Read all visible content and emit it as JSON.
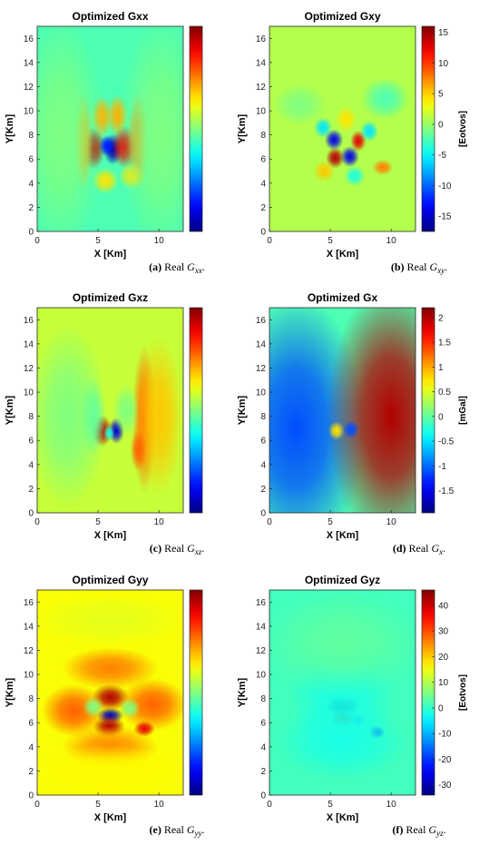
{
  "chart_data": [
    {
      "type": "heatmap",
      "title": "Optimized Gxx",
      "xlabel": "X [Km]",
      "ylabel": "Y[Km]",
      "xlim": [
        0,
        12
      ],
      "ylim": [
        0,
        17
      ],
      "x_ticks": [
        "0",
        "5",
        "10"
      ],
      "y_ticks": [
        "0",
        "2",
        "4",
        "6",
        "8",
        "10",
        "12",
        "14",
        "16"
      ],
      "colorbar_ticks": [],
      "colorbar_label": "",
      "caption": {
        "tag": "(a)",
        "text": " Real ",
        "sym": "G",
        "sub": "xx",
        "end": "."
      },
      "background": 0.45,
      "blobs": [
        {
          "x": 4.6,
          "y": 6.9,
          "sx": 0.45,
          "sy": 0.8,
          "v": 0.95
        },
        {
          "x": 6.2,
          "y": 6.8,
          "sx": 0.35,
          "sy": 0.6,
          "v": 0.05
        },
        {
          "x": 7.2,
          "y": 7.0,
          "sx": 0.5,
          "sy": 0.8,
          "v": 0.9
        },
        {
          "x": 5.7,
          "y": 7.1,
          "sx": 0.3,
          "sy": 0.4,
          "v": 0.15
        },
        {
          "x": 3.8,
          "y": 7.5,
          "sx": 0.35,
          "sy": 1.8,
          "v": 0.72
        },
        {
          "x": 8.3,
          "y": 7.5,
          "sx": 0.4,
          "sy": 1.8,
          "v": 0.75
        },
        {
          "x": 5.3,
          "y": 9.5,
          "sx": 0.4,
          "sy": 0.8,
          "v": 0.7
        },
        {
          "x": 6.6,
          "y": 9.6,
          "sx": 0.4,
          "sy": 0.8,
          "v": 0.7
        },
        {
          "x": 5.6,
          "y": 4.2,
          "sx": 0.5,
          "sy": 0.5,
          "v": 0.65
        },
        {
          "x": 7.8,
          "y": 4.6,
          "sx": 0.5,
          "sy": 0.5,
          "v": 0.65
        },
        {
          "x": 2.0,
          "y": 8.0,
          "sx": 1.6,
          "sy": 4.5,
          "v": 0.5
        },
        {
          "x": 10.2,
          "y": 8.0,
          "sx": 1.6,
          "sy": 4.5,
          "v": 0.5
        }
      ]
    },
    {
      "type": "heatmap",
      "title": "Optimized Gxy",
      "xlabel": "X [Km]",
      "ylabel": "Y[Km]",
      "xlim": [
        0,
        12
      ],
      "ylim": [
        0,
        17
      ],
      "x_ticks": [
        "0",
        "5",
        "10"
      ],
      "y_ticks": [
        "0",
        "2",
        "4",
        "6",
        "8",
        "10",
        "12",
        "14",
        "16"
      ],
      "colorbar_ticks": [
        "15",
        "10",
        "5",
        "0",
        "-5",
        "-10",
        "-15"
      ],
      "colorbar_label": "[Eotvos]",
      "caption": {
        "tag": "(b)",
        "text": " Real ",
        "sym": "G",
        "sub": "xy",
        "end": "."
      },
      "background": 0.55,
      "blobs": [
        {
          "x": 5.3,
          "y": 7.6,
          "sx": 0.35,
          "sy": 0.4,
          "v": 0.1
        },
        {
          "x": 5.4,
          "y": 6.1,
          "sx": 0.35,
          "sy": 0.4,
          "v": 0.95
        },
        {
          "x": 6.6,
          "y": 6.2,
          "sx": 0.35,
          "sy": 0.4,
          "v": 0.1
        },
        {
          "x": 7.3,
          "y": 7.5,
          "sx": 0.3,
          "sy": 0.4,
          "v": 0.9
        },
        {
          "x": 4.4,
          "y": 8.6,
          "sx": 0.35,
          "sy": 0.4,
          "v": 0.35
        },
        {
          "x": 8.2,
          "y": 8.3,
          "sx": 0.35,
          "sy": 0.4,
          "v": 0.35
        },
        {
          "x": 9.3,
          "y": 5.3,
          "sx": 0.4,
          "sy": 0.3,
          "v": 0.75
        },
        {
          "x": 4.5,
          "y": 5.0,
          "sx": 0.4,
          "sy": 0.4,
          "v": 0.68
        },
        {
          "x": 6.3,
          "y": 9.3,
          "sx": 0.4,
          "sy": 0.5,
          "v": 0.65
        },
        {
          "x": 7.0,
          "y": 4.6,
          "sx": 0.4,
          "sy": 0.4,
          "v": 0.4
        },
        {
          "x": 9.5,
          "y": 11.0,
          "sx": 0.9,
          "sy": 0.8,
          "v": 0.45
        },
        {
          "x": 2.5,
          "y": 10.5,
          "sx": 1.0,
          "sy": 0.8,
          "v": 0.5
        }
      ]
    },
    {
      "type": "heatmap",
      "title": "Optimized Gxz",
      "xlabel": "X [Km]",
      "ylabel": "Y[Km]",
      "xlim": [
        0,
        12
      ],
      "ylim": [
        0,
        17
      ],
      "x_ticks": [
        "0",
        "5",
        "10"
      ],
      "y_ticks": [
        "0",
        "2",
        "4",
        "6",
        "8",
        "10",
        "12",
        "14",
        "16"
      ],
      "colorbar_ticks": [],
      "colorbar_label": "",
      "caption": {
        "tag": "(c)",
        "text": " Real ",
        "sym": "G",
        "sub": "xz",
        "end": "."
      },
      "background": 0.57,
      "blobs": [
        {
          "x": 5.3,
          "y": 6.8,
          "sx": 0.4,
          "sy": 0.6,
          "v": 0.95
        },
        {
          "x": 6.5,
          "y": 6.8,
          "sx": 0.3,
          "sy": 0.5,
          "v": 0.08
        },
        {
          "x": 5.9,
          "y": 6.6,
          "sx": 0.2,
          "sy": 0.3,
          "v": 0.4
        },
        {
          "x": 8.8,
          "y": 7.8,
          "sx": 0.45,
          "sy": 2.8,
          "v": 0.78
        },
        {
          "x": 10.0,
          "y": 8.0,
          "sx": 0.9,
          "sy": 3.0,
          "v": 0.68
        },
        {
          "x": 8.3,
          "y": 5.2,
          "sx": 0.3,
          "sy": 0.8,
          "v": 0.78
        },
        {
          "x": 4.5,
          "y": 8.0,
          "sx": 0.5,
          "sy": 1.5,
          "v": 0.45
        },
        {
          "x": 2.5,
          "y": 8.0,
          "sx": 1.5,
          "sy": 3.5,
          "v": 0.5
        },
        {
          "x": 7.3,
          "y": 8.5,
          "sx": 0.5,
          "sy": 1.0,
          "v": 0.5
        }
      ]
    },
    {
      "type": "heatmap",
      "title": "Optimized Gx",
      "xlabel": "X [Km]",
      "ylabel": "Y[Km]",
      "xlim": [
        0,
        12
      ],
      "ylim": [
        0,
        17
      ],
      "x_ticks": [
        "0",
        "5",
        "10"
      ],
      "y_ticks": [
        "0",
        "2",
        "4",
        "6",
        "8",
        "10",
        "12",
        "14",
        "16"
      ],
      "colorbar_ticks": [
        "2",
        "1.5",
        "1",
        "0.5",
        "0",
        "-0.5",
        "-1",
        "-1.5"
      ],
      "colorbar_label": "[mGal]",
      "caption": {
        "tag": "(d)",
        "text": " Real ",
        "sym": "G",
        "sub": "x",
        "end": "."
      },
      "background": 0.45,
      "blobs": [
        {
          "x": 2.2,
          "y": 7.0,
          "sx": 2.6,
          "sy": 5.0,
          "v": 0.2
        },
        {
          "x": 10.0,
          "y": 8.0,
          "sx": 2.4,
          "sy": 5.0,
          "v": 0.95
        },
        {
          "x": 5.5,
          "y": 6.8,
          "sx": 0.3,
          "sy": 0.35,
          "v": 0.65
        },
        {
          "x": 6.7,
          "y": 6.9,
          "sx": 0.3,
          "sy": 0.35,
          "v": 0.2
        }
      ]
    },
    {
      "type": "heatmap",
      "title": "Optimized Gyy",
      "xlabel": "X [Km]",
      "ylabel": "Y[Km]",
      "xlim": [
        0,
        12
      ],
      "ylim": [
        0,
        17
      ],
      "x_ticks": [
        "0",
        "5",
        "10"
      ],
      "y_ticks": [
        "0",
        "2",
        "4",
        "6",
        "8",
        "10",
        "12",
        "14",
        "16"
      ],
      "colorbar_ticks": [],
      "colorbar_label": "",
      "caption": {
        "tag": "(e)",
        "text": " Real ",
        "sym": "G",
        "sub": "yy",
        "end": "."
      },
      "background": 0.62,
      "blobs": [
        {
          "x": 6.0,
          "y": 6.6,
          "sx": 0.5,
          "sy": 0.3,
          "v": 0.05
        },
        {
          "x": 6.0,
          "y": 8.1,
          "sx": 0.7,
          "sy": 0.5,
          "v": 0.95
        },
        {
          "x": 5.9,
          "y": 5.7,
          "sx": 0.6,
          "sy": 0.4,
          "v": 0.95
        },
        {
          "x": 3.0,
          "y": 7.0,
          "sx": 1.2,
          "sy": 1.0,
          "v": 0.78
        },
        {
          "x": 9.5,
          "y": 7.5,
          "sx": 1.3,
          "sy": 1.0,
          "v": 0.78
        },
        {
          "x": 6.0,
          "y": 10.5,
          "sx": 1.8,
          "sy": 0.8,
          "v": 0.75
        },
        {
          "x": 6.0,
          "y": 4.0,
          "sx": 1.8,
          "sy": 0.8,
          "v": 0.74
        },
        {
          "x": 4.6,
          "y": 7.3,
          "sx": 0.4,
          "sy": 0.4,
          "v": 0.5
        },
        {
          "x": 7.6,
          "y": 7.2,
          "sx": 0.4,
          "sy": 0.4,
          "v": 0.5
        },
        {
          "x": 8.8,
          "y": 5.5,
          "sx": 0.4,
          "sy": 0.3,
          "v": 0.9
        },
        {
          "x": 6.0,
          "y": 2.0,
          "sx": 3.0,
          "sy": 1.0,
          "v": 0.63
        },
        {
          "x": 6.0,
          "y": 14.5,
          "sx": 3.0,
          "sy": 1.0,
          "v": 0.6
        }
      ]
    },
    {
      "type": "heatmap",
      "title": "Optimized Gyz",
      "xlabel": "X [Km]",
      "ylabel": "Y[Km]",
      "xlim": [
        0,
        12
      ],
      "ylim": [
        0,
        17
      ],
      "x_ticks": [
        "0",
        "5",
        "10"
      ],
      "y_ticks": [
        "0",
        "2",
        "4",
        "6",
        "8",
        "10",
        "12",
        "14",
        "16"
      ],
      "colorbar_ticks": [
        "40",
        "30",
        "20",
        "10",
        "0",
        "-10",
        "-20",
        "-30"
      ],
      "colorbar_label": "[Eotvos]",
      "caption": {
        "tag": "(f)",
        "text": " Real ",
        "sym": "G",
        "sub": "yz",
        "end": "."
      },
      "background": 0.44,
      "blobs": [
        {
          "x": 6.0,
          "y": 7.4,
          "sx": 0.6,
          "sy": 0.4,
          "v": 0.0
        },
        {
          "x": 6.0,
          "y": 6.3,
          "sx": 0.45,
          "sy": 0.3,
          "v": 0.95
        },
        {
          "x": 7.2,
          "y": 6.2,
          "sx": 0.3,
          "sy": 0.25,
          "v": 0.25
        },
        {
          "x": 8.8,
          "y": 5.2,
          "sx": 0.3,
          "sy": 0.25,
          "v": 0.2
        },
        {
          "x": 6.0,
          "y": 8.5,
          "sx": 2.0,
          "sy": 2.5,
          "v": 0.4
        },
        {
          "x": 6.0,
          "y": 4.5,
          "sx": 2.5,
          "sy": 1.5,
          "v": 0.4
        },
        {
          "x": 6.0,
          "y": 12.5,
          "sx": 3.0,
          "sy": 2.0,
          "v": 0.47
        }
      ]
    }
  ]
}
